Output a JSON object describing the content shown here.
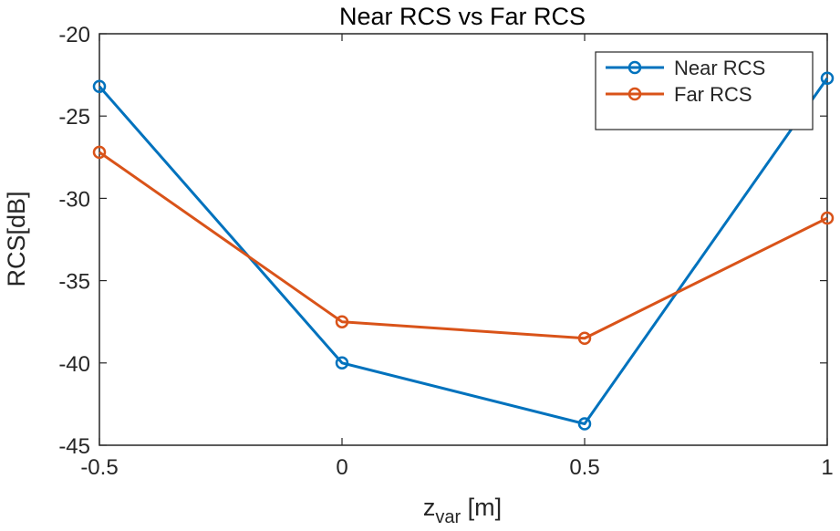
{
  "chart_data": {
    "type": "line",
    "title": "Near RCS vs Far RCS",
    "xlabel": {
      "main": "z",
      "subscript": "var",
      "unit": " [m]"
    },
    "ylabel": "RCS[dB]",
    "x": [
      -0.5,
      0,
      0.5,
      1
    ],
    "xlim": [
      -0.5,
      1
    ],
    "ylim": [
      -45,
      -20
    ],
    "xticks": [
      -0.5,
      0,
      0.5,
      1
    ],
    "xtick_labels": [
      "-0.5",
      "0",
      "0.5",
      "1"
    ],
    "yticks": [
      -20,
      -25,
      -30,
      -35,
      -40,
      -45
    ],
    "ytick_labels": [
      "-20",
      "-25",
      "-30",
      "-35",
      "-40",
      "-45"
    ],
    "grid": false,
    "legend_position": "top-right",
    "series": [
      {
        "name": "Near RCS",
        "color": "#0072BD",
        "marker": "circle",
        "values": [
          -23.2,
          -40.0,
          -43.7,
          -22.7
        ]
      },
      {
        "name": "Far RCS",
        "color": "#D95319",
        "marker": "circle",
        "values": [
          -27.2,
          -37.5,
          -38.5,
          -31.2
        ]
      }
    ]
  }
}
